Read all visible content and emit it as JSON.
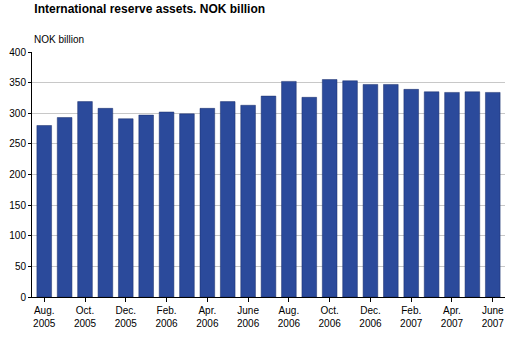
{
  "chart_data": {
    "type": "bar",
    "title": "International reserve assets. NOK billion",
    "y_label": "NOK billion",
    "categories": [
      "Aug. 2005",
      null,
      "Oct. 2005",
      null,
      "Dec. 2005",
      null,
      "Feb. 2006",
      null,
      "Apr. 2006",
      null,
      "June 2006",
      null,
      "Aug. 2006",
      null,
      "Oct. 2006",
      null,
      "Dec. 2006",
      null,
      "Feb. 2007",
      null,
      "Apr. 2007",
      null,
      "June 2007"
    ],
    "values": [
      280,
      293,
      319,
      308,
      291,
      297,
      302,
      299,
      308,
      319,
      313,
      328,
      352,
      326,
      355,
      353,
      347,
      347,
      339,
      335,
      334,
      335,
      334
    ],
    "color": "#2b4a9b",
    "ylim": [
      0,
      400
    ],
    "yticks": [
      0,
      50,
      100,
      150,
      200,
      250,
      300,
      350,
      400
    ],
    "grid": true
  }
}
